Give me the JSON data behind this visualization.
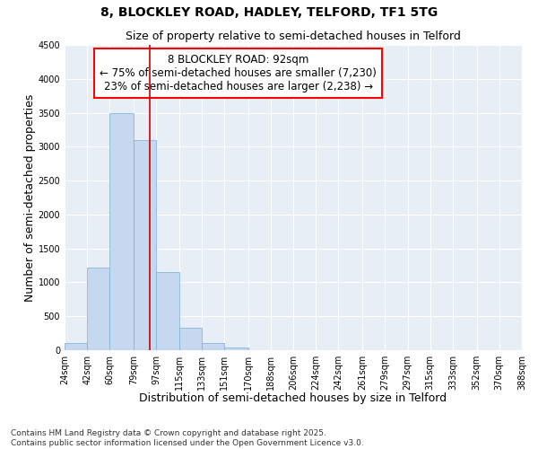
{
  "title_line1": "8, BLOCKLEY ROAD, HADLEY, TELFORD, TF1 5TG",
  "title_line2": "Size of property relative to semi-detached houses in Telford",
  "xlabel": "Distribution of semi-detached houses by size in Telford",
  "ylabel": "Number of semi-detached properties",
  "annotation_title": "8 BLOCKLEY ROAD: 92sqm",
  "annotation_line2": "← 75% of semi-detached houses are smaller (7,230)",
  "annotation_line3": "23% of semi-detached houses are larger (2,238) →",
  "bin_labels": [
    "24sqm",
    "42sqm",
    "60sqm",
    "79sqm",
    "97sqm",
    "115sqm",
    "133sqm",
    "151sqm",
    "170sqm",
    "188sqm",
    "206sqm",
    "224sqm",
    "242sqm",
    "261sqm",
    "279sqm",
    "297sqm",
    "315sqm",
    "333sqm",
    "352sqm",
    "370sqm",
    "388sqm"
  ],
  "bin_edges": [
    24,
    42,
    60,
    79,
    97,
    115,
    133,
    151,
    170,
    188,
    206,
    224,
    242,
    261,
    279,
    297,
    315,
    333,
    352,
    370,
    388
  ],
  "bar_heights": [
    100,
    1220,
    3500,
    3100,
    1150,
    335,
    110,
    40,
    0,
    0,
    0,
    0,
    0,
    0,
    0,
    0,
    0,
    0,
    0,
    0
  ],
  "bar_color": "#c5d8f0",
  "bar_edgecolor": "#7aadd4",
  "vline_color": "#cc0000",
  "vline_x": 92,
  "ylim": [
    0,
    4500
  ],
  "yticks": [
    0,
    500,
    1000,
    1500,
    2000,
    2500,
    3000,
    3500,
    4000,
    4500
  ],
  "background_color": "#e8eef5",
  "footer_line1": "Contains HM Land Registry data © Crown copyright and database right 2025.",
  "footer_line2": "Contains public sector information licensed under the Open Government Licence v3.0.",
  "title_fontsize": 10,
  "subtitle_fontsize": 9,
  "axis_label_fontsize": 9,
  "tick_fontsize": 7,
  "annotation_fontsize": 8.5,
  "footer_fontsize": 6.5
}
